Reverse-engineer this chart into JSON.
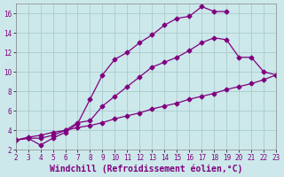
{
  "xlabel": "Windchill (Refroidissement éolien,°C)",
  "bg_color": "#cce8ea",
  "grid_color": "#aacccc",
  "line_color": "#800080",
  "xlim": [
    2,
    23
  ],
  "ylim": [
    2,
    17
  ],
  "xticks": [
    2,
    3,
    4,
    5,
    6,
    7,
    8,
    9,
    10,
    11,
    12,
    13,
    14,
    15,
    16,
    17,
    18,
    19,
    20,
    21,
    22,
    23
  ],
  "yticks": [
    2,
    4,
    6,
    8,
    10,
    12,
    14,
    16
  ],
  "line1_x": [
    2,
    3,
    4,
    5,
    6,
    7,
    8,
    9,
    10,
    11,
    12,
    13,
    14,
    15,
    16,
    17,
    18,
    19
  ],
  "line1_y": [
    3.0,
    3.2,
    2.5,
    3.2,
    3.8,
    4.7,
    7.2,
    9.7,
    11.3,
    12.0,
    13.0,
    13.8,
    14.8,
    15.5,
    15.7,
    16.7,
    16.2,
    16.2
  ],
  "line2_x": [
    2,
    3,
    4,
    5,
    6,
    7,
    8,
    9,
    10,
    11,
    12,
    13,
    14,
    15,
    16,
    17,
    18,
    19,
    20,
    21,
    22,
    23
  ],
  "line2_y": [
    3.0,
    3.2,
    3.2,
    3.5,
    4.0,
    4.8,
    5.0,
    6.5,
    7.5,
    8.5,
    9.5,
    10.5,
    11.0,
    11.5,
    12.2,
    13.0,
    13.5,
    13.3,
    11.5,
    11.5,
    10.0,
    9.7
  ],
  "line3_x": [
    2,
    3,
    4,
    5,
    6,
    7,
    8,
    9,
    10,
    11,
    12,
    13,
    14,
    15,
    16,
    17,
    18,
    19,
    20,
    21,
    22,
    23
  ],
  "line3_y": [
    3.0,
    3.3,
    3.5,
    3.8,
    4.0,
    4.3,
    4.5,
    4.8,
    5.2,
    5.5,
    5.8,
    6.2,
    6.5,
    6.8,
    7.2,
    7.5,
    7.8,
    8.2,
    8.5,
    8.8,
    9.2,
    9.7
  ],
  "xlabel_fontsize": 7,
  "tick_fontsize": 5.5
}
